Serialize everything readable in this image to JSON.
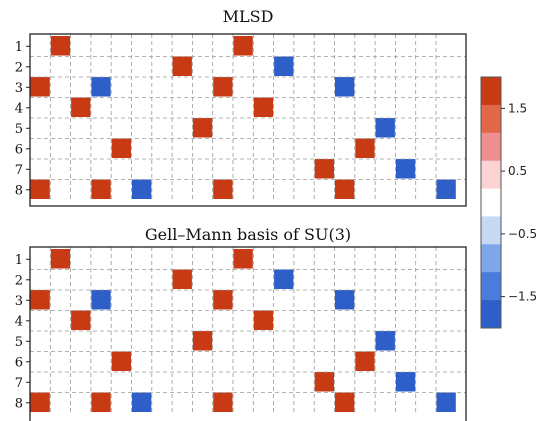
{
  "chart_data": [
    {
      "type": "heatmap",
      "title": "MLSD",
      "row_labels": [
        "1",
        "2",
        "3",
        "4",
        "5",
        "6",
        "7",
        "8"
      ],
      "n_cols": 21,
      "color_scale": [
        "#2e5fc8",
        "#4a7cdb",
        "#7ea6ea",
        "#c8d9f6",
        "#ffffff",
        "#fbd3d3",
        "#ef8f8f",
        "#e06848",
        "#c83a14"
      ],
      "cells": [
        {
          "row": 1,
          "col": 2,
          "value": 2
        },
        {
          "row": 1,
          "col": 11,
          "value": 2
        },
        {
          "row": 2,
          "col": 8,
          "value": 2
        },
        {
          "row": 2,
          "col": 13,
          "value": -2
        },
        {
          "row": 3,
          "col": 1,
          "value": 2
        },
        {
          "row": 3,
          "col": 4,
          "value": -2
        },
        {
          "row": 3,
          "col": 10,
          "value": 2
        },
        {
          "row": 3,
          "col": 16,
          "value": -2
        },
        {
          "row": 4,
          "col": 3,
          "value": 2
        },
        {
          "row": 4,
          "col": 12,
          "value": 2
        },
        {
          "row": 5,
          "col": 9,
          "value": 2
        },
        {
          "row": 5,
          "col": 18,
          "value": -2
        },
        {
          "row": 6,
          "col": 5,
          "value": 2
        },
        {
          "row": 6,
          "col": 17,
          "value": 2
        },
        {
          "row": 7,
          "col": 15,
          "value": 2
        },
        {
          "row": 7,
          "col": 19,
          "value": -2
        },
        {
          "row": 8,
          "col": 1,
          "value": 2
        },
        {
          "row": 8,
          "col": 4,
          "value": 2
        },
        {
          "row": 8,
          "col": 6,
          "value": -2
        },
        {
          "row": 8,
          "col": 10,
          "value": 2
        },
        {
          "row": 8,
          "col": 16,
          "value": 2
        },
        {
          "row": 8,
          "col": 21,
          "value": -2
        }
      ]
    },
    {
      "type": "heatmap",
      "title": "Gell–Mann basis of SU(3)",
      "row_labels": [
        "1",
        "2",
        "3",
        "4",
        "5",
        "6",
        "7",
        "8"
      ],
      "n_cols": 21,
      "color_scale": [
        "#2e5fc8",
        "#4a7cdb",
        "#7ea6ea",
        "#c8d9f6",
        "#ffffff",
        "#fbd3d3",
        "#ef8f8f",
        "#e06848",
        "#c83a14"
      ],
      "cells": [
        {
          "row": 1,
          "col": 2,
          "value": 2
        },
        {
          "row": 1,
          "col": 11,
          "value": 2
        },
        {
          "row": 2,
          "col": 8,
          "value": 2
        },
        {
          "row": 2,
          "col": 13,
          "value": -2
        },
        {
          "row": 3,
          "col": 1,
          "value": 2
        },
        {
          "row": 3,
          "col": 4,
          "value": -2
        },
        {
          "row": 3,
          "col": 10,
          "value": 2
        },
        {
          "row": 3,
          "col": 16,
          "value": -2
        },
        {
          "row": 4,
          "col": 3,
          "value": 2
        },
        {
          "row": 4,
          "col": 12,
          "value": 2
        },
        {
          "row": 5,
          "col": 9,
          "value": 2
        },
        {
          "row": 5,
          "col": 18,
          "value": -2
        },
        {
          "row": 6,
          "col": 5,
          "value": 2
        },
        {
          "row": 6,
          "col": 17,
          "value": 2
        },
        {
          "row": 7,
          "col": 15,
          "value": 2
        },
        {
          "row": 7,
          "col": 19,
          "value": -2
        },
        {
          "row": 8,
          "col": 1,
          "value": 2
        },
        {
          "row": 8,
          "col": 4,
          "value": 2
        },
        {
          "row": 8,
          "col": 6,
          "value": -2
        },
        {
          "row": 8,
          "col": 10,
          "value": 2
        },
        {
          "row": 8,
          "col": 16,
          "value": 2
        },
        {
          "row": 8,
          "col": 21,
          "value": -2
        }
      ]
    }
  ],
  "colorbar": {
    "range": [
      -2,
      2
    ],
    "ticks": [
      {
        "value": 1.5,
        "label": "1.5"
      },
      {
        "value": 0.5,
        "label": "0.5"
      },
      {
        "value": -0.5,
        "label": "−0.5"
      },
      {
        "value": -1.5,
        "label": "−1.5"
      }
    ],
    "bands": [
      "#c83a14",
      "#e06848",
      "#ef8f8f",
      "#fbd3d3",
      "#ffffff",
      "#c8d9f6",
      "#7ea6ea",
      "#4a7cdb",
      "#2e5fc8"
    ]
  },
  "colors": {
    "positive": "#c83a14",
    "negative": "#2e5fc8"
  }
}
